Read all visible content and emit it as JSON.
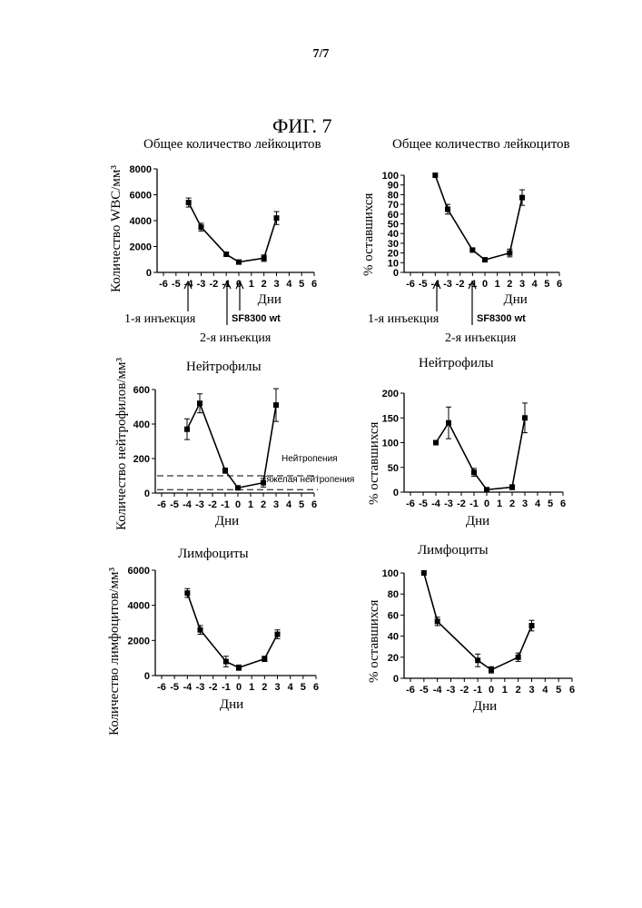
{
  "page": {
    "number": "7/7",
    "figure": "ФИГ. 7"
  },
  "notes": {
    "first_injection": "1-я инъекция",
    "second_injection": "2-я инъекция",
    "strain_left": "SF8300 wt",
    "strain_right": "SF8300 wt",
    "first_injection_right": "1-я инъекция",
    "second_injection_right": "2-я инъекция",
    "neutropenia": "Нейтропения",
    "severe_neutropenia": "Тяжелая нейтропения"
  },
  "chart_data": [
    {
      "type": "line",
      "title": "Общее количество лейкоцитов",
      "ylabel": "Количество WBC/мм³",
      "xlabel": "Дни",
      "xlim": [
        -6,
        6
      ],
      "ylim": [
        0,
        8000
      ],
      "xticks": [
        "-6",
        "-5",
        "-4",
        "-3",
        "-2",
        "-1",
        "0",
        "1",
        "2",
        "3",
        "4",
        "5",
        "6"
      ],
      "yticks": [
        "0",
        "2000",
        "4000",
        "6000",
        "8000"
      ],
      "x": [
        -4,
        -3,
        -1,
        0,
        2,
        3
      ],
      "y": [
        5400,
        3500,
        1400,
        800,
        1100,
        4200
      ],
      "err": [
        350,
        300,
        150,
        100,
        250,
        500
      ]
    },
    {
      "type": "line",
      "title": "Общее количество лейкоцитов",
      "ylabel": "% оставшихся",
      "xlabel": "Дни",
      "xlim": [
        -6,
        6
      ],
      "ylim": [
        0,
        100
      ],
      "xticks": [
        "-6",
        "-5",
        "-4",
        "-3",
        "-2",
        "-1",
        "0",
        "1",
        "2",
        "3",
        "4",
        "5",
        "6"
      ],
      "yticks": [
        "0",
        "10",
        "20",
        "30",
        "40",
        "50",
        "60",
        "70",
        "80",
        "90",
        "100"
      ],
      "x": [
        -4,
        -3,
        -1,
        0,
        2,
        3
      ],
      "y": [
        100,
        65,
        23,
        13,
        20,
        77
      ],
      "err": [
        0,
        5,
        2,
        1,
        4,
        8
      ]
    },
    {
      "type": "line",
      "title": "Нейтрофилы",
      "ylabel": "Количество нейтрофилов/мм³",
      "xlabel": "Дни",
      "xlim": [
        -6,
        6
      ],
      "ylim": [
        0,
        600
      ],
      "xticks": [
        "-6",
        "-5",
        "-4",
        "-3",
        "-2",
        "-1",
        "0",
        "1",
        "2",
        "3",
        "4",
        "5",
        "6"
      ],
      "yticks": [
        "0",
        "200",
        "400",
        "600"
      ],
      "x": [
        -4,
        -3,
        -1,
        0,
        2,
        3
      ],
      "y": [
        370,
        520,
        130,
        30,
        60,
        510
      ],
      "err": [
        60,
        55,
        15,
        10,
        25,
        95
      ],
      "hlines": [
        100,
        20
      ]
    },
    {
      "type": "line",
      "title": "Нейтрофилы",
      "ylabel": "% оставшихся",
      "xlabel": "Дни",
      "xlim": [
        -6,
        6
      ],
      "ylim": [
        0,
        200
      ],
      "xticks": [
        "-6",
        "-5",
        "-4",
        "-3",
        "-2",
        "-1",
        "0",
        "1",
        "2",
        "3",
        "4",
        "5",
        "6"
      ],
      "yticks": [
        "0",
        "50",
        "100",
        "150",
        "200"
      ],
      "x": [
        -4,
        -3,
        -1,
        0,
        2,
        3
      ],
      "y": [
        100,
        140,
        40,
        5,
        10,
        150
      ],
      "err": [
        0,
        32,
        8,
        2,
        5,
        30
      ]
    },
    {
      "type": "line",
      "title": "Лимфоциты",
      "ylabel": "Количество лимфоцитов/мм³",
      "xlabel": "Дни",
      "xlim": [
        -6,
        6
      ],
      "ylim": [
        0,
        6000
      ],
      "xticks": [
        "-6",
        "-5",
        "-4",
        "-3",
        "-2",
        "-1",
        "0",
        "1",
        "2",
        "3",
        "4",
        "5",
        "6"
      ],
      "yticks": [
        "0",
        "2000",
        "4000",
        "6000"
      ],
      "x": [
        -4,
        -3,
        -1,
        0,
        2,
        3
      ],
      "y": [
        4700,
        2600,
        800,
        450,
        950,
        2350
      ],
      "err": [
        250,
        250,
        300,
        150,
        150,
        250
      ]
    },
    {
      "type": "line",
      "title": "Лимфоциты",
      "ylabel": "% оставшихся",
      "xlabel": "Дни",
      "xlim": [
        -6,
        6
      ],
      "ylim": [
        0,
        100
      ],
      "xticks": [
        "-6",
        "-5",
        "-4",
        "-3",
        "-2",
        "-1",
        "0",
        "1",
        "2",
        "3",
        "4",
        "5",
        "6"
      ],
      "yticks": [
        "0",
        "20",
        "40",
        "60",
        "80",
        "100"
      ],
      "x": [
        -5,
        -4,
        -1,
        0,
        2,
        3
      ],
      "y": [
        100,
        54,
        17,
        8,
        20,
        50
      ],
      "err": [
        0,
        4,
        6,
        3,
        4,
        5
      ]
    }
  ]
}
